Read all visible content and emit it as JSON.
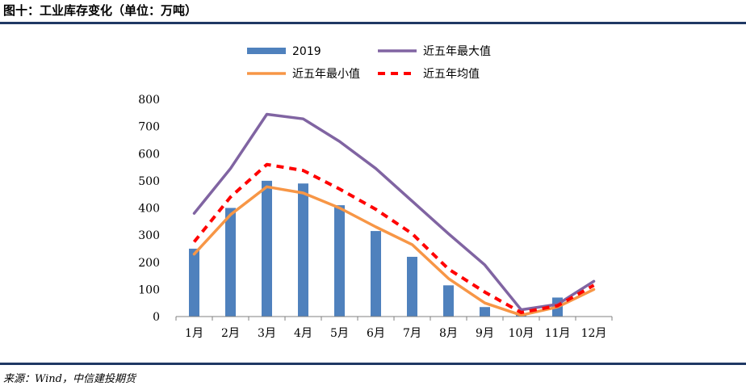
{
  "figure": {
    "title": "图十：工业库存变化（单位：万吨）",
    "source": "来源：Wind，中信建投期货"
  },
  "colors": {
    "bar": "#4f81bd",
    "max": "#8064a2",
    "min": "#f79646",
    "avg": "#ff0000",
    "rule": "#1f3864"
  },
  "chart_data": {
    "type": "bar",
    "categories": [
      "1月",
      "2月",
      "3月",
      "4月",
      "5月",
      "6月",
      "7月",
      "8月",
      "9月",
      "10月",
      "11月",
      "12月"
    ],
    "ylim": [
      0,
      800
    ],
    "yticks": [
      0,
      100,
      200,
      300,
      400,
      500,
      600,
      700,
      800
    ],
    "legend_position": "top",
    "series": [
      {
        "name": "2019",
        "kind": "bar",
        "color": "#4f81bd",
        "values": [
          250,
          400,
          500,
          490,
          410,
          315,
          220,
          115,
          35,
          10,
          70,
          null
        ]
      },
      {
        "name": "近五年最大值",
        "kind": "line",
        "style": "solid",
        "color": "#8064a2",
        "values": [
          380,
          545,
          745,
          728,
          645,
          545,
          425,
          305,
          190,
          25,
          45,
          130
        ]
      },
      {
        "name": "近五年最小值",
        "kind": "line",
        "style": "solid",
        "color": "#f79646",
        "values": [
          230,
          375,
          478,
          455,
          400,
          330,
          265,
          140,
          50,
          5,
          35,
          100
        ]
      },
      {
        "name": "近五年均值",
        "kind": "line",
        "style": "dashed",
        "color": "#ff0000",
        "values": [
          275,
          440,
          560,
          538,
          470,
          395,
          305,
          175,
          90,
          15,
          40,
          115
        ]
      }
    ]
  }
}
